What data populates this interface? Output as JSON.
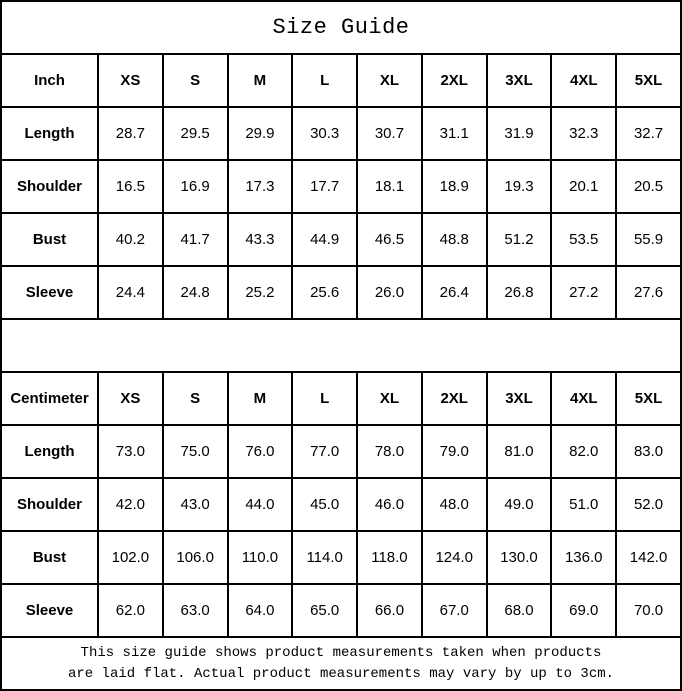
{
  "title": "Size Guide",
  "size_labels": [
    "XS",
    "S",
    "M",
    "L",
    "XL",
    "2XL",
    "3XL",
    "4XL",
    "5XL"
  ],
  "tables": [
    {
      "unit_label": "Inch",
      "rows": [
        {
          "label": "Length",
          "values": [
            "28.7",
            "29.5",
            "29.9",
            "30.3",
            "30.7",
            "31.1",
            "31.9",
            "32.3",
            "32.7"
          ]
        },
        {
          "label": "Shoulder",
          "values": [
            "16.5",
            "16.9",
            "17.3",
            "17.7",
            "18.1",
            "18.9",
            "19.3",
            "20.1",
            "20.5"
          ]
        },
        {
          "label": "Bust",
          "values": [
            "40.2",
            "41.7",
            "43.3",
            "44.9",
            "46.5",
            "48.8",
            "51.2",
            "53.5",
            "55.9"
          ]
        },
        {
          "label": "Sleeve",
          "values": [
            "24.4",
            "24.8",
            "25.2",
            "25.6",
            "26.0",
            "26.4",
            "26.8",
            "27.2",
            "27.6"
          ]
        }
      ]
    },
    {
      "unit_label": "Centimeter",
      "rows": [
        {
          "label": "Length",
          "values": [
            "73.0",
            "75.0",
            "76.0",
            "77.0",
            "78.0",
            "79.0",
            "81.0",
            "82.0",
            "83.0"
          ]
        },
        {
          "label": "Shoulder",
          "values": [
            "42.0",
            "43.0",
            "44.0",
            "45.0",
            "46.0",
            "48.0",
            "49.0",
            "51.0",
            "52.0"
          ]
        },
        {
          "label": "Bust",
          "values": [
            "102.0",
            "106.0",
            "110.0",
            "114.0",
            "118.0",
            "124.0",
            "130.0",
            "136.0",
            "142.0"
          ]
        },
        {
          "label": "Sleeve",
          "values": [
            "62.0",
            "63.0",
            "64.0",
            "65.0",
            "66.0",
            "67.0",
            "68.0",
            "69.0",
            "70.0"
          ]
        }
      ]
    }
  ],
  "footer": {
    "line1": "This size guide shows product measurements taken when products",
    "line2": "are laid flat. Actual product measurements may vary by up to 3cm."
  },
  "colors": {
    "background": "#ffffff",
    "border": "#000000",
    "text": "#000000"
  }
}
